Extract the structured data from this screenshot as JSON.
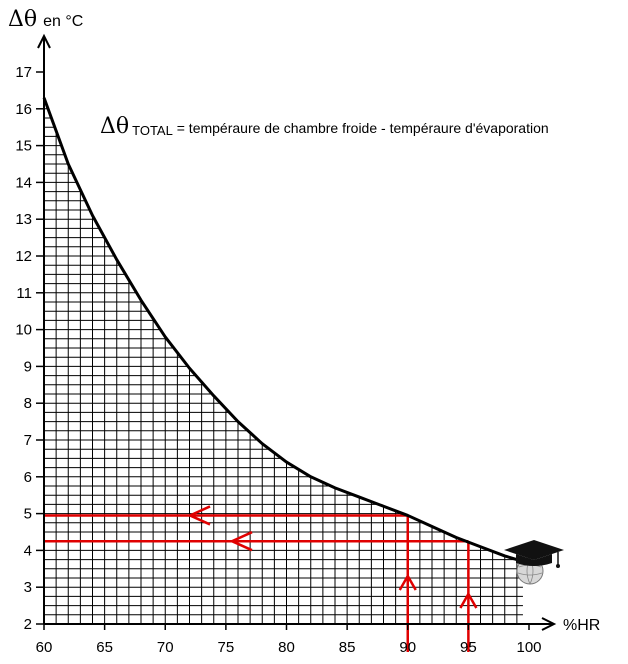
{
  "chart_data": {
    "type": "line",
    "ylabel_symbol": "Δθ",
    "ylabel_unit": "en °C",
    "xlabel": "%HR",
    "formula_symbol": "Δθ",
    "formula_subscript": "TOTAL",
    "formula_text": " = tempéraure de chambre froide - tempéraure d'évaporation",
    "xlim": [
      60,
      100
    ],
    "ylim": [
      2,
      17
    ],
    "x_ticks": [
      "60",
      "65",
      "70",
      "75",
      "80",
      "85",
      "90",
      "95",
      "100"
    ],
    "y_ticks": [
      "2",
      "3",
      "4",
      "5",
      "6",
      "7",
      "8",
      "9",
      "10",
      "11",
      "12",
      "13",
      "14",
      "15",
      "16",
      "17"
    ],
    "grid": true,
    "series": [
      {
        "x": [
          60,
          62,
          64,
          66,
          68,
          70,
          72,
          74,
          76,
          78,
          80,
          82,
          84,
          86,
          88,
          90,
          92,
          94,
          96,
          98,
          99.5
        ],
        "y": [
          16.3,
          14.5,
          13.1,
          11.9,
          10.8,
          9.8,
          8.95,
          8.2,
          7.5,
          6.9,
          6.4,
          6.0,
          5.7,
          5.45,
          5.2,
          4.95,
          4.65,
          4.35,
          4.1,
          3.85,
          3.7
        ],
        "color": "#000000"
      }
    ],
    "annotations": [
      {
        "x": 90,
        "y": 4.95,
        "color": "#e00000"
      },
      {
        "x": 95,
        "y": 4.25,
        "color": "#e00000"
      }
    ],
    "logo": "graduation-cap-globe-logo"
  }
}
